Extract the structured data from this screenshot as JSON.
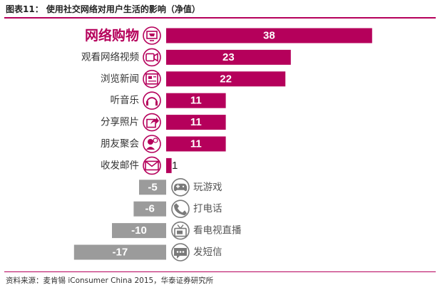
{
  "figure_title": "图表11：  使用社交网络对用户生活的影响（净值）",
  "source_note": "资料来源：麦肯锡 iConsumer China 2015，华泰证券研究所",
  "colors": {
    "positive": "#b5005b",
    "negative": "#9b9b9b",
    "icon_positive": "#b5005b",
    "icon_negative": "#7a7a7a",
    "rule": "#b5005b"
  },
  "chart_data": {
    "type": "bar",
    "orientation": "horizontal",
    "title": "使用社交网络对用户生活的影响（净值）",
    "categories": [
      "网络购物",
      "观看网络视频",
      "浏览新闻",
      "听音乐",
      "分享照片",
      "朋友聚会",
      "收发邮件",
      "玩游戏",
      "打电话",
      "看电视直播",
      "发短信"
    ],
    "values": [
      38,
      23,
      22,
      11,
      11,
      11,
      1,
      -5,
      -6,
      -10,
      -17
    ],
    "value_labels": [
      "38",
      "23",
      "22",
      "11",
      "11",
      "11",
      "1",
      "-5",
      "-6",
      "-10",
      "-17"
    ],
    "icons": [
      "computer-shopping-icon",
      "video-camera-icon",
      "newspaper-icon",
      "headphones-music-icon",
      "share-icon",
      "friends-icon",
      "mail-icon",
      "gamepad-icon",
      "phone-icon",
      "television-icon",
      "chat-bubble-icon"
    ],
    "grid": false,
    "legend": "none"
  }
}
